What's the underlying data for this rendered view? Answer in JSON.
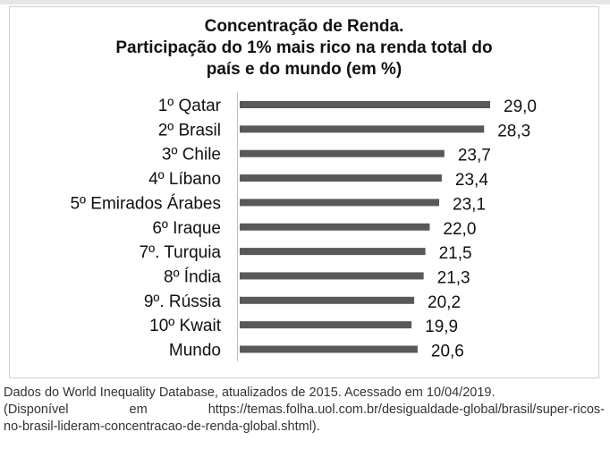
{
  "chart_data": {
    "type": "bar",
    "orientation": "horizontal",
    "title": [
      "Concentração de Renda.",
      "Participação do 1% mais rico na renda total do",
      "país e do mundo (em %)"
    ],
    "categories": [
      "1º Qatar",
      "2º Brasil",
      "3º Chile",
      "4º Líbano",
      "5º Emirados Árabes",
      "6º Iraque",
      "7º. Turquia",
      "8º Índia",
      "9º. Rússia",
      "10º Kwait",
      "Mundo"
    ],
    "values": [
      29.0,
      28.3,
      23.7,
      23.4,
      23.1,
      22.0,
      21.5,
      21.3,
      20.2,
      19.9,
      20.6
    ],
    "value_labels": [
      "29,0",
      "28,3",
      "23,7",
      "23,4",
      "23,1",
      "22,0",
      "21,5",
      "21,3",
      "20,2",
      "19,9",
      "20,6"
    ],
    "xlabel": "",
    "ylabel": "",
    "xlim": [
      0,
      29
    ],
    "grid": false,
    "bar_color": "#595959"
  },
  "footer": {
    "line1": "Dados do World Inequality Database, atualizados de 2015. Acessado em 10/04/2019.",
    "line2": "(Disponível em https://temas.folha.uol.com.br/desigualdade-global/brasil/super-ricos-",
    "line3": "no-brasil-lideram-concentracao-de-renda-global.shtml)."
  }
}
